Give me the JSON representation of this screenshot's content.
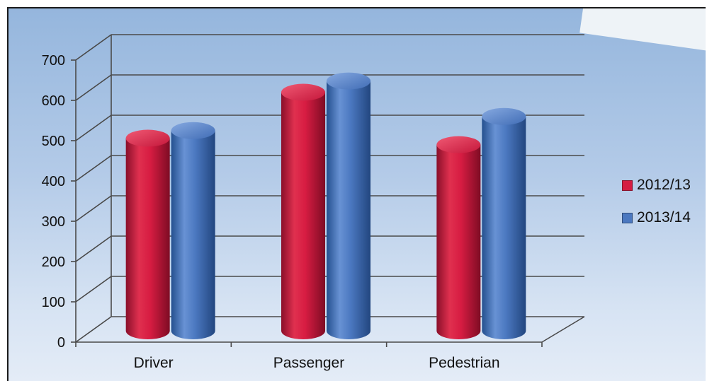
{
  "chart_data": {
    "type": "bar",
    "style": "3d-cylinder",
    "categories": [
      "Driver",
      "Passenger",
      "Pedestrian"
    ],
    "series": [
      {
        "name": "2012/13",
        "values": [
          478,
          592,
          462
        ],
        "color": "#d51c43"
      },
      {
        "name": "2013/14",
        "values": [
          497,
          620,
          532
        ],
        "color": "#4b78c0"
      }
    ],
    "ylim": [
      0,
      700
    ],
    "yticks": [
      "0",
      "100",
      "200",
      "300",
      "400",
      "500",
      "600",
      "700"
    ],
    "grid": true,
    "legend_position": "right"
  }
}
